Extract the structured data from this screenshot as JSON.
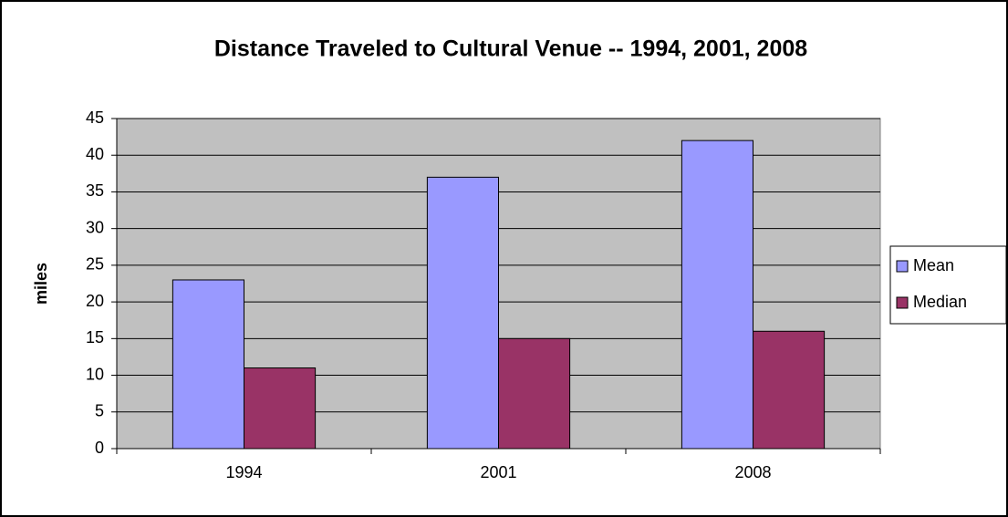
{
  "chart_data": {
    "type": "bar",
    "title": "Distance Traveled to Cultural Venue -- 1994, 2001, 2008",
    "y_label": "miles",
    "categories": [
      "1994",
      "2001",
      "2008"
    ],
    "series": [
      {
        "name": "Mean",
        "color": "#9999ff",
        "values": [
          23,
          37,
          42
        ]
      },
      {
        "name": "Median",
        "color": "#993366",
        "values": [
          11,
          15,
          16
        ]
      }
    ],
    "ylim": [
      0,
      45
    ],
    "yticks": [
      0,
      5,
      10,
      15,
      20,
      25,
      30,
      35,
      40,
      45
    ],
    "grid": true,
    "legend": "right"
  }
}
